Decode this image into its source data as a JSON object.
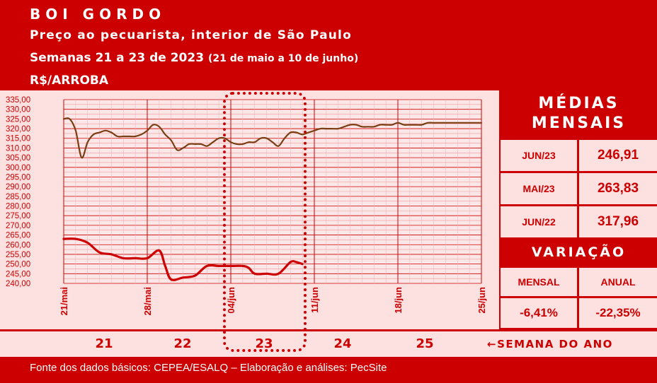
{
  "header": {
    "title": "BOI GORDO",
    "subtitle": "Preço ao pecuarista, interior de São Paulo",
    "period_main": "Semanas 21 a 23 de 2023",
    "period_detail": "(21 de maio a 10 de junho)",
    "unit": "R$/ARROBA"
  },
  "chart_data": {
    "type": "line",
    "ylim": [
      240,
      335
    ],
    "yticks": [
      "335,00",
      "330,00",
      "325,00",
      "320,00",
      "315,00",
      "310,00",
      "305,00",
      "300,00",
      "295,00",
      "290,00",
      "285,00",
      "280,00",
      "275,00",
      "270,00",
      "265,00",
      "260,00",
      "255,00",
      "250,00",
      "245,00",
      "240,00"
    ],
    "xlim": [
      0,
      35
    ],
    "x_ticks": [
      {
        "x": 0,
        "label": "21/mai"
      },
      {
        "x": 7,
        "label": "28/mai"
      },
      {
        "x": 14,
        "label": "04/jun"
      },
      {
        "x": 21,
        "label": "11/jun"
      },
      {
        "x": 28,
        "label": "18/jun"
      },
      {
        "x": 35,
        "label": "25/jun"
      }
    ],
    "series": [
      {
        "color": "#7a3e12",
        "x": [
          0,
          0.5,
          1,
          1.5,
          2,
          2.5,
          3,
          3.5,
          4,
          4.5,
          5,
          5.5,
          6,
          6.5,
          7,
          7.5,
          8,
          8.5,
          9,
          9.5,
          10,
          10.5,
          11,
          11.5,
          12,
          12.5,
          13,
          13.5,
          14,
          14.5,
          15,
          15.5,
          16,
          16.5,
          17,
          17.5,
          18,
          18.5,
          19,
          19.5,
          20,
          20.5,
          21,
          21.5,
          22,
          22.5,
          23,
          23.5,
          24,
          24.5,
          25,
          25.5,
          26,
          26.5,
          27,
          27.5,
          28,
          28.5,
          29,
          29.5,
          30,
          30.5,
          31,
          31.5,
          32,
          32.5,
          33,
          33.5,
          34,
          34.5,
          35
        ],
        "values": [
          325,
          325,
          319,
          305,
          313,
          317,
          318,
          319,
          318,
          316,
          316,
          316,
          316,
          317,
          319,
          322,
          321,
          317,
          314,
          309,
          310,
          312,
          312,
          312,
          311,
          313,
          315,
          315,
          313,
          312,
          312,
          313,
          313,
          315,
          315,
          313,
          311,
          315,
          318,
          318,
          317,
          318,
          319,
          320,
          320,
          320,
          320,
          321,
          322,
          322,
          321,
          321,
          321,
          322,
          322,
          322,
          323,
          322,
          322,
          322,
          322,
          323,
          323,
          323,
          323,
          323,
          323,
          323,
          323,
          323,
          323
        ]
      },
      {
        "color": "#cc0000",
        "x": [
          0,
          1,
          2,
          3,
          4,
          5,
          6,
          7,
          8,
          8.5,
          9,
          10,
          11,
          12,
          13,
          14,
          15,
          15.5,
          16,
          17,
          18,
          19,
          19.5,
          20
        ],
        "values": [
          263,
          263,
          261,
          256,
          255,
          253,
          253,
          253,
          257,
          249,
          242,
          243,
          244,
          249,
          249,
          249,
          249,
          248,
          245,
          245,
          245,
          251,
          251,
          250
        ]
      }
    ]
  },
  "monthly_averages": {
    "title_line1": "MÉDIAS",
    "title_line2": "MENSAIS",
    "rows": [
      {
        "label": "JUN/23",
        "value": "246,91"
      },
      {
        "label": "MAI/23",
        "value": "263,83"
      },
      {
        "label": "JUN/22",
        "value": "317,96"
      }
    ]
  },
  "variation": {
    "title": "VARIAÇÃO",
    "monthly_label": "MENSAL",
    "annual_label": "ANUAL",
    "monthly_value": "-6,41%",
    "annual_value": "-22,35%"
  },
  "weeks": {
    "items": [
      "21",
      "22",
      "23",
      "24",
      "25"
    ],
    "label": "←SEMANA DO ANO"
  },
  "footer": {
    "source": "Fonte dos dados básicos: CEPEA/ESALQ – Elaboração e análises: PecSite"
  },
  "colors": {
    "background": "#cc0000",
    "panel": "#fde0e0",
    "text_light": "#ffffff",
    "series_upper": "#7a3e12",
    "series_lower": "#cc0000"
  }
}
